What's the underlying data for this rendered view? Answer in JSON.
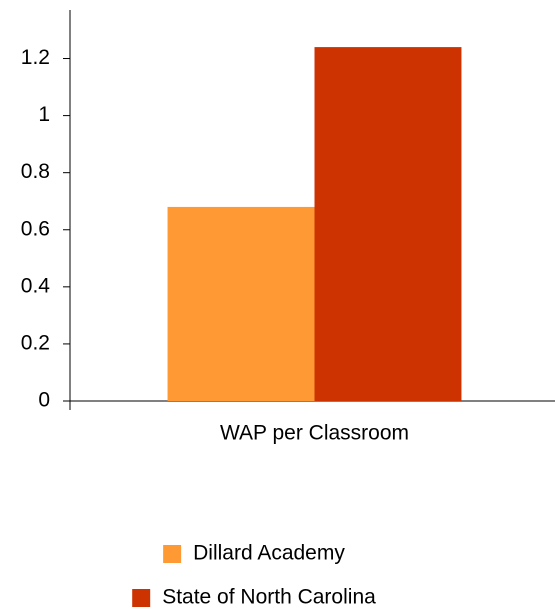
{
  "chart_data": {
    "type": "bar",
    "categories": [
      "WAP per Classroom"
    ],
    "series": [
      {
        "name": "Dillard Academy",
        "color": "#ff9933",
        "values": [
          0.68
        ]
      },
      {
        "name": "State of North Carolina",
        "color": "#cc3300",
        "values": [
          1.24
        ]
      }
    ],
    "ylim": [
      0,
      1.37
    ],
    "yticks": [
      0,
      0.2,
      0.4,
      0.6,
      0.8,
      1,
      1.2
    ],
    "grid": false,
    "legend": "bottom"
  }
}
